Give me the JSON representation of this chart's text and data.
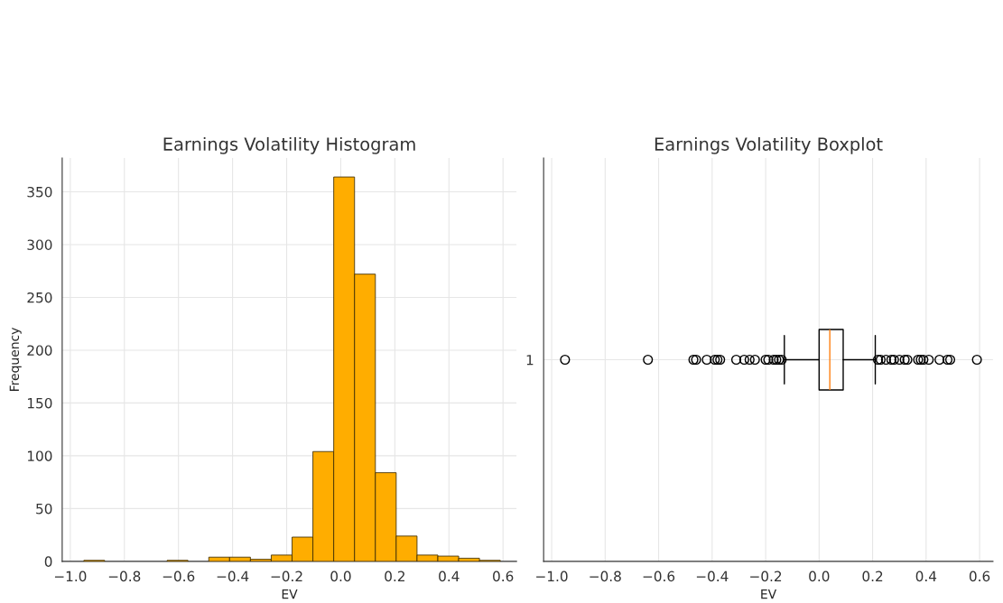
{
  "chart_data": [
    {
      "type": "histogram",
      "title": "Earnings Volatility Histogram",
      "xlabel": "EV",
      "ylabel": "Frequency",
      "bins": [
        -0.95,
        -0.873,
        -0.796,
        -0.719,
        -0.642,
        -0.565,
        -0.488,
        -0.411,
        -0.334,
        -0.257,
        -0.18,
        -0.103,
        -0.026,
        0.051,
        0.128,
        0.205,
        0.282,
        0.359,
        0.436,
        0.513,
        0.59
      ],
      "values": [
        1,
        0,
        0,
        0,
        1,
        0,
        4,
        4,
        2,
        6,
        23,
        104,
        364,
        272,
        84,
        24,
        6,
        5,
        3,
        1
      ],
      "color": "#ffad00",
      "xlim": [
        -1.03,
        0.65
      ],
      "xticks": [
        {
          "value": -1.0,
          "label": "−1.0"
        },
        {
          "value": -0.8,
          "label": "−0.8"
        },
        {
          "value": -0.6,
          "label": "−0.6"
        },
        {
          "value": -0.4,
          "label": "−0.4"
        },
        {
          "value": -0.2,
          "label": "−0.2"
        },
        {
          "value": 0.0,
          "label": "0.0"
        },
        {
          "value": 0.2,
          "label": "0.2"
        },
        {
          "value": 0.4,
          "label": "0.4"
        },
        {
          "value": 0.6,
          "label": "0.6"
        }
      ],
      "ylim": [
        0,
        382
      ],
      "yticks": [
        0,
        50,
        100,
        150,
        200,
        250,
        300,
        350
      ],
      "grid": true
    },
    {
      "type": "box",
      "title": "Earnings Volatility Boxplot",
      "xlabel": "EV",
      "orientation": "horizontal",
      "categories": [
        "1"
      ],
      "boxes": [
        {
          "low": -0.13,
          "q1": 0.0,
          "median": 0.04,
          "q3": 0.09,
          "high": 0.21,
          "outliers": [
            -0.95,
            -0.64,
            -0.47,
            -0.46,
            -0.42,
            -0.39,
            -0.38,
            -0.37,
            -0.31,
            -0.28,
            -0.26,
            -0.24,
            -0.2,
            -0.19,
            -0.17,
            -0.16,
            -0.15,
            -0.14,
            0.22,
            0.23,
            0.25,
            0.27,
            0.28,
            0.3,
            0.32,
            0.33,
            0.37,
            0.38,
            0.39,
            0.41,
            0.45,
            0.48,
            0.49,
            0.59
          ]
        }
      ],
      "xlim": [
        -1.03,
        0.65
      ],
      "xticks": [
        {
          "value": -1.0,
          "label": "−1.0"
        },
        {
          "value": -0.8,
          "label": "−0.8"
        },
        {
          "value": -0.6,
          "label": "−0.6"
        },
        {
          "value": -0.4,
          "label": "−0.4"
        },
        {
          "value": -0.2,
          "label": "−0.2"
        },
        {
          "value": 0.0,
          "label": "0.0"
        },
        {
          "value": 0.2,
          "label": "0.2"
        },
        {
          "value": 0.4,
          "label": "0.4"
        },
        {
          "value": 0.6,
          "label": "0.6"
        }
      ],
      "grid": true
    }
  ]
}
